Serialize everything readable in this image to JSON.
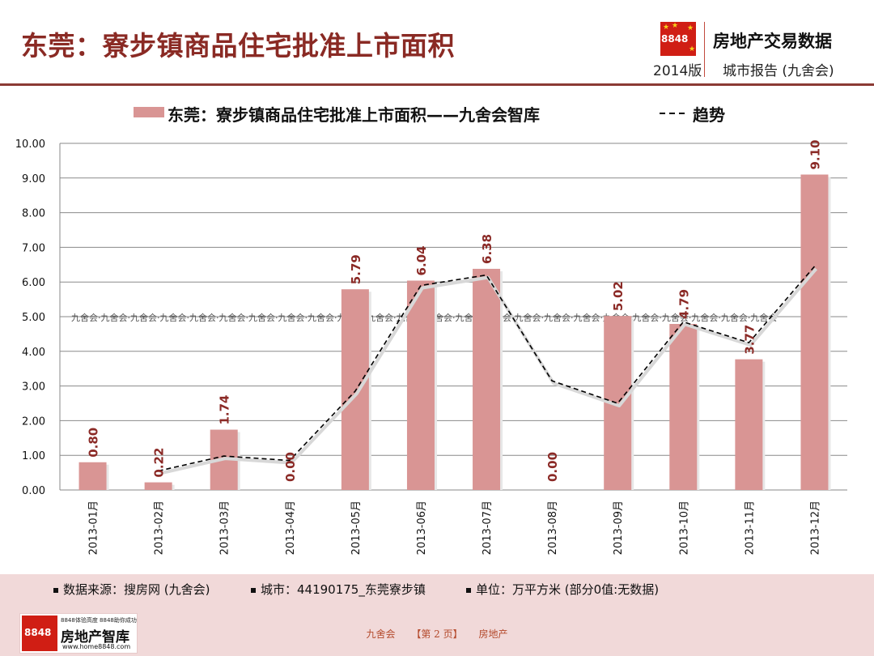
{
  "header": {
    "title": "东莞：寮步镇商品住宅批准上市面积",
    "logo_number": "8848",
    "edition": "2014版",
    "brand_name": "房地产交易数据",
    "brand_sub": "城市报告 (九舍会)"
  },
  "chart_data": {
    "type": "bar",
    "categories": [
      "2013-01月",
      "2013-02月",
      "2013-03月",
      "2013-04月",
      "2013-05月",
      "2013-06月",
      "2013-07月",
      "2013-08月",
      "2013-09月",
      "2013-10月",
      "2013-11月",
      "2013-12月"
    ],
    "series": [
      {
        "name": "东莞：寮步镇商品住宅批准上市面积——九舍会智库",
        "type": "bar",
        "color": "#d99594",
        "values": [
          0.8,
          0.22,
          1.74,
          0.0,
          5.79,
          6.04,
          6.38,
          0.0,
          5.02,
          4.79,
          3.77,
          9.1
        ],
        "labels": [
          "0.80",
          "0.22",
          "1.74",
          "0.00",
          "5.79",
          "6.04",
          "6.38",
          "0.00",
          "5.02",
          "4.79",
          "3.77",
          "9.10"
        ]
      },
      {
        "name": "趋势",
        "type": "line",
        "style": "dashed",
        "color": "#000000",
        "values": [
          null,
          0.55,
          0.98,
          0.85,
          2.85,
          5.9,
          6.2,
          3.15,
          2.5,
          4.85,
          4.25,
          6.45
        ]
      }
    ],
    "yticks": [
      "0.00",
      "1.00",
      "2.00",
      "3.00",
      "4.00",
      "5.00",
      "6.00",
      "7.00",
      "8.00",
      "9.00",
      "10.00"
    ],
    "ylim": [
      0,
      10
    ],
    "grid": true,
    "legend_position": "top",
    "label_color": "#8b2a26",
    "watermark": "九舍会·九舍会·九舍会·九舍会·九舍会·九舍会·九舍会·九舍会·九舍会·九舍会·九舍会·九舍会·九舍会·九舍会·九舍会·九舍会·九舍会·九舍会·九舍会·九舍会·九舍会·九舍会·九舍会·九舍会"
  },
  "footer": {
    "source": "数据来源：搜房网 (九舍会)",
    "city": "城市：44190175_东莞寮步镇",
    "unit": "单位：万平方米 (部分0值:无数据)",
    "logo_number": "8848",
    "logo_tagline": "8848体验高度 8848助你成功",
    "logo_name": "房地产智库",
    "logo_url": "www.home8848.com",
    "page_left": "九舍会",
    "page_center": "【第 2 页】",
    "page_right": "房地产"
  }
}
